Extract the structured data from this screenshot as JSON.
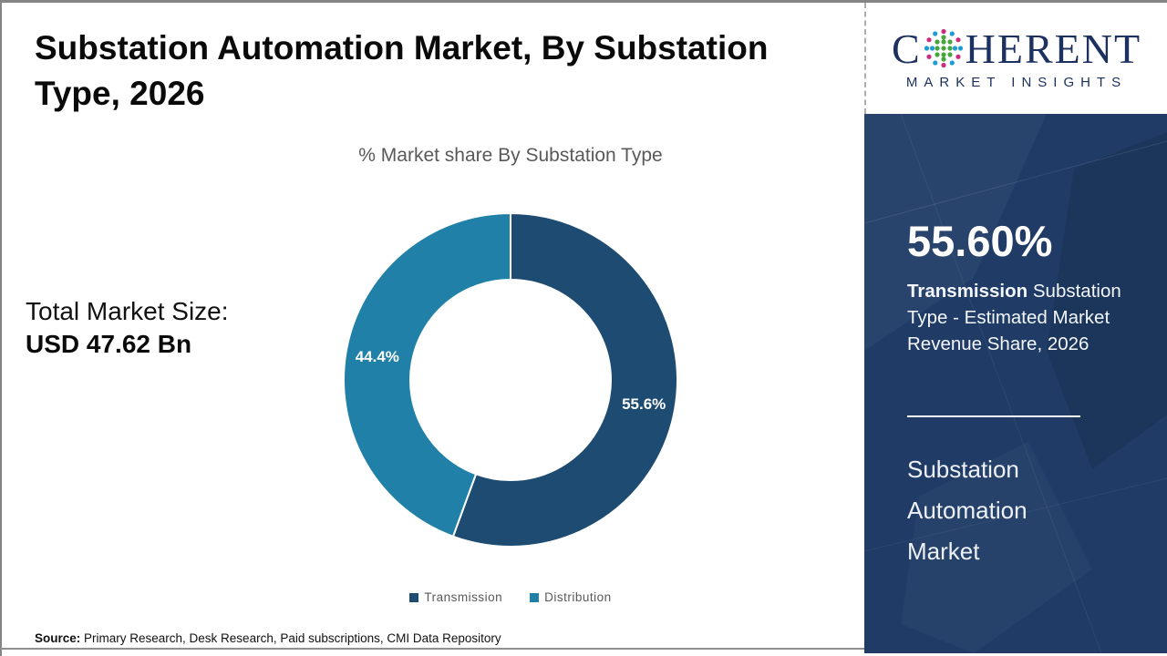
{
  "header": {
    "title": "Substation Automation Market, By Substation Type, 2026"
  },
  "stats": {
    "total_label": "Total Market Size:",
    "total_value": "USD 47.62 Bn"
  },
  "chart_data": {
    "type": "pie",
    "donut": true,
    "title": "% Market share By Substation Type",
    "categories": [
      "Transmission",
      "Distribution"
    ],
    "values": [
      55.6,
      44.4
    ],
    "slice_labels": [
      "55.6%",
      "44.4%"
    ],
    "colors": [
      "#1d4b72",
      "#2080a8"
    ],
    "start_angle": "top",
    "direction": "clockwise",
    "legend_position": "bottom",
    "label_color": "#ffffff"
  },
  "source": {
    "label": "Source:",
    "text": " Primary Research, Desk Research, Paid subscriptions, CMI Data Repository"
  },
  "logo": {
    "brand_part1": "C",
    "brand_part2": "HERENT",
    "brand_line2": "MARKET INSIGHTS",
    "navy": "#1d3160",
    "dot_green": "#45a63c",
    "dot_magenta": "#cc2a7d",
    "dot_blue": "#1e9cd7"
  },
  "sidebar": {
    "bg": "#1f3b66",
    "stat_value": "55.60%",
    "desc_bold": "Transmission",
    "desc_rest": " Substation Type - Estimated Market Revenue Share, 2026",
    "market_lines": [
      "Substation",
      "Automation",
      "Market"
    ]
  }
}
